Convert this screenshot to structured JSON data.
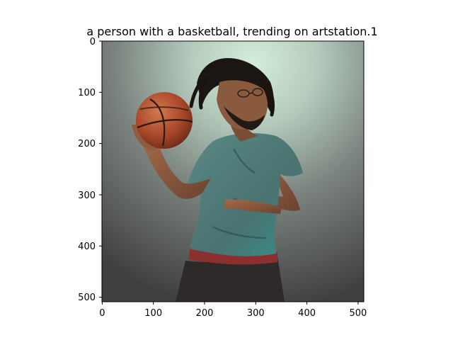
{
  "title": "a person with a basketball,  trending on artstation.1",
  "image": {
    "description_icon": "basketball-player-painting",
    "palette": {
      "background_light": "#cfe6d6",
      "background_dark": "#4a4a4a",
      "skin": "#8a5a3e",
      "shirt": "#4d7a78",
      "shirt_dark": "#3c5e5d",
      "ball": "#b0502c",
      "ball_lines": "#2a1a12",
      "hair": "#1c1612",
      "shorts": "#2e2a2a",
      "waistband": "#8a3030"
    }
  },
  "axes": {
    "x_ticks": [
      "0",
      "100",
      "200",
      "300",
      "400",
      "500"
    ],
    "y_ticks": [
      "0",
      "100",
      "200",
      "300",
      "400",
      "500"
    ],
    "x_range": [
      0,
      512
    ],
    "y_range": [
      0,
      512
    ]
  }
}
